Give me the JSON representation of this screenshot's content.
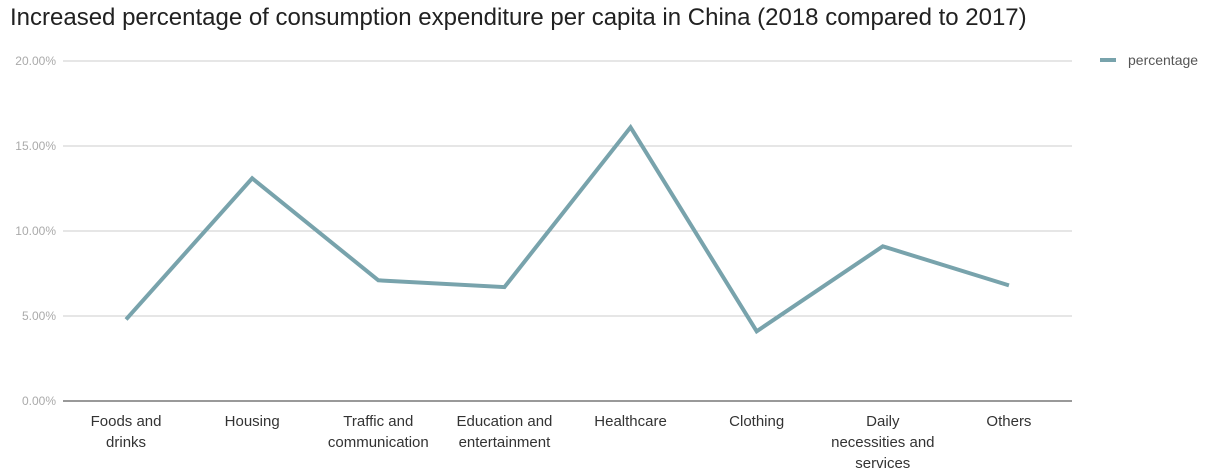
{
  "chart_data": {
    "type": "line",
    "title": "Increased percentage of consumption expenditure per capita in China (2018 compared to 2017)",
    "xlabel": "",
    "ylabel": "",
    "categories": [
      "Foods and drinks",
      "Housing",
      "Traffic and communication",
      "Education and entertainment",
      "Healthcare",
      "Clothing",
      "Daily necessities and services",
      "Others"
    ],
    "category_lines": [
      [
        "Foods and",
        "drinks"
      ],
      [
        "Housing"
      ],
      [
        "Traffic and",
        "communication"
      ],
      [
        "Education and",
        "entertainment"
      ],
      [
        "Healthcare"
      ],
      [
        "Clothing"
      ],
      [
        "Daily",
        "necessities and",
        "services"
      ],
      [
        "Others"
      ]
    ],
    "series": [
      {
        "name": "percentage",
        "values": [
          4.8,
          13.1,
          7.1,
          6.7,
          16.1,
          4.1,
          9.1,
          6.8
        ],
        "color": "#78a3ac"
      }
    ],
    "ylim": [
      0,
      20
    ],
    "yticks": [
      0,
      5,
      10,
      15,
      20
    ],
    "ytick_labels": [
      "0.00%",
      "5.00%",
      "10.00%",
      "15.00%",
      "20.00%"
    ],
    "grid": true,
    "legend_position": "top-right"
  }
}
